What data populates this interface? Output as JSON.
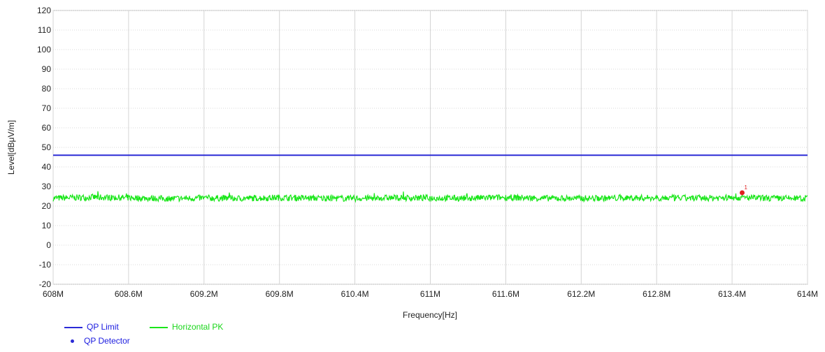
{
  "chart_data": {
    "type": "line",
    "title": "",
    "xlabel": "Frequency[Hz]",
    "ylabel": "Level[dBμV/m]",
    "xlim": [
      608,
      614
    ],
    "ylim": [
      -20,
      120
    ],
    "x_unit": "MHz",
    "xticks": [
      608,
      608.6,
      609.2,
      609.8,
      610.4,
      611,
      611.6,
      612.2,
      612.8,
      613.4,
      614
    ],
    "xtick_labels": [
      "608M",
      "608.6M",
      "609.2M",
      "609.8M",
      "610.4M",
      "611M",
      "611.6M",
      "612.2M",
      "612.8M",
      "613.4M",
      "614M"
    ],
    "yticks": [
      120,
      110,
      100,
      90,
      80,
      70,
      60,
      50,
      40,
      30,
      20,
      10,
      0,
      -10,
      -20
    ],
    "ytick_labels": [
      "120",
      "110",
      "100",
      "90",
      "80",
      "70",
      "60",
      "50",
      "40",
      "30",
      "20",
      "10",
      "0",
      "-10",
      "-20"
    ],
    "grid": true,
    "legend_position": "bottom-left",
    "series": [
      {
        "name": "QP Limit",
        "color": "#2b2bd6",
        "style": "line",
        "x": [
          608,
          614
        ],
        "y": [
          46,
          46
        ]
      },
      {
        "name": "Horizontal PK",
        "color": "#19e619",
        "style": "noisy-line",
        "x": [
          608,
          608.3,
          608.6,
          608.9,
          609.2,
          609.5,
          609.8,
          610.1,
          610.4,
          610.7,
          611,
          611.3,
          611.6,
          611.9,
          612.2,
          612.5,
          612.8,
          613.1,
          613.4,
          613.7,
          614
        ],
        "y": [
          24,
          24.5,
          24.2,
          23.8,
          24.1,
          23.9,
          24.3,
          24,
          23.9,
          24.2,
          24.1,
          24,
          24.4,
          24,
          23.9,
          24.1,
          24.2,
          24,
          24.3,
          24,
          23.9
        ],
        "band": [
          22,
          27
        ]
      },
      {
        "name": "QP Detector",
        "color": "#2b2bd6",
        "style": "marker",
        "x": [],
        "y": []
      }
    ],
    "markers": [
      {
        "label": "1",
        "x": 613.48,
        "y": 26.8,
        "color": "#e02020"
      }
    ]
  }
}
